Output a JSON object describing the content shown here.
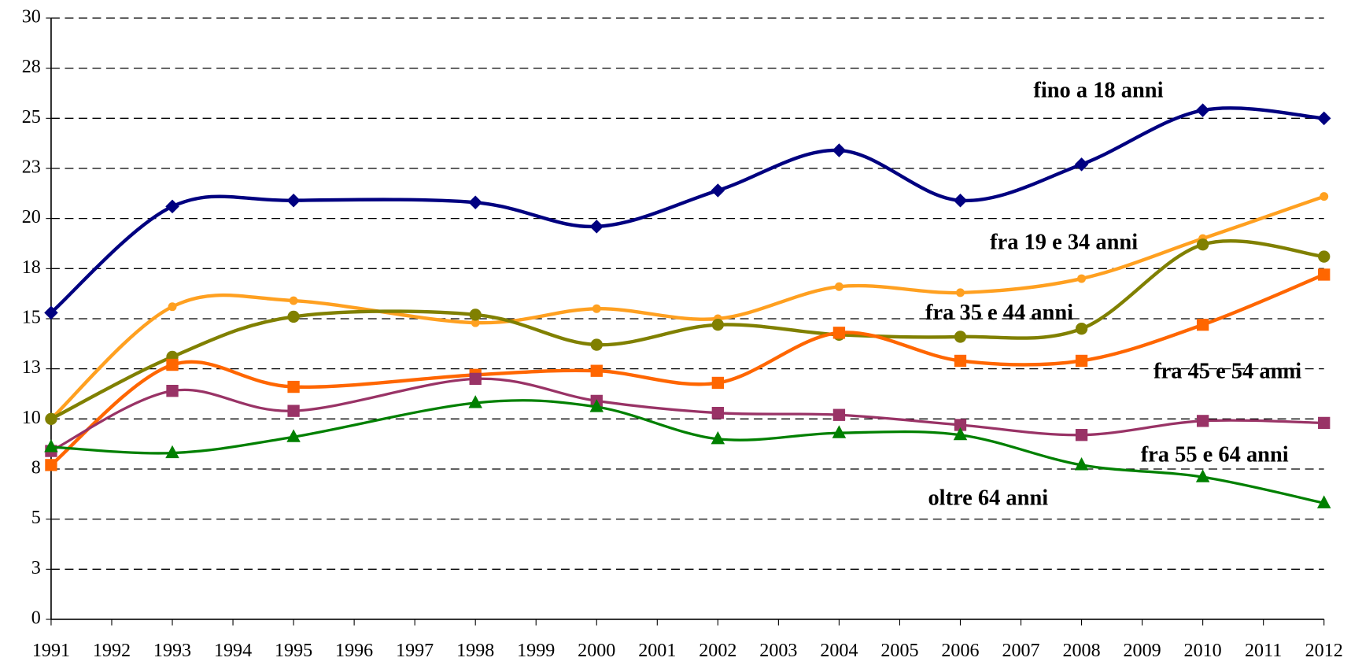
{
  "chart_data": {
    "type": "line",
    "x": [
      1991,
      1993,
      1995,
      1998,
      2000,
      2002,
      2004,
      2006,
      2008,
      2010,
      2012
    ],
    "xlim": [
      1991,
      2012
    ],
    "xticks": [
      1991,
      1992,
      1993,
      1994,
      1995,
      1996,
      1997,
      1998,
      1999,
      2000,
      2001,
      2002,
      2003,
      2004,
      2005,
      2006,
      2007,
      2008,
      2009,
      2010,
      2011,
      2012
    ],
    "ylim": [
      0,
      30
    ],
    "yticks": [
      0,
      {
        "value": 2.5,
        "label": "3"
      },
      5,
      {
        "value": 7.5,
        "label": "8"
      },
      10,
      {
        "value": 12.5,
        "label": "13"
      },
      15,
      {
        "value": 17.5,
        "label": "18"
      },
      20,
      {
        "value": 22.5,
        "label": "23"
      },
      25,
      {
        "value": 27.5,
        "label": "28"
      },
      30
    ],
    "grid": true,
    "series": [
      {
        "name": "fino a 18 anni",
        "color": "#000080",
        "marker": "diamond",
        "values": [
          15.3,
          20.6,
          20.9,
          20.8,
          19.6,
          21.4,
          23.4,
          20.9,
          22.7,
          25.4,
          25.0
        ]
      },
      {
        "name": "fra 19 e 34 anni",
        "color": "#ffa020",
        "marker": "circle",
        "values": [
          10.0,
          15.6,
          15.9,
          14.8,
          15.5,
          15.0,
          16.6,
          16.3,
          17.0,
          19.0,
          21.1
        ]
      },
      {
        "name": "fra 35 e 44 anni",
        "color": "#808000",
        "marker": "circle",
        "values": [
          10.0,
          13.1,
          15.1,
          15.2,
          13.7,
          14.7,
          14.2,
          14.1,
          14.5,
          18.7,
          18.1
        ]
      },
      {
        "name": "fra 45 e 54 anni",
        "color": "#ff6600",
        "marker": "square",
        "values": [
          7.7,
          12.7,
          11.6,
          12.2,
          12.4,
          11.8,
          14.3,
          12.9,
          12.9,
          14.7,
          17.2
        ]
      },
      {
        "name": "fra 55 e 64 anni",
        "color": "#993366",
        "marker": "square",
        "values": [
          8.4,
          11.4,
          10.4,
          12.0,
          10.9,
          10.3,
          10.2,
          9.7,
          9.2,
          9.9,
          9.8
        ]
      },
      {
        "name": "oltre 64 anni",
        "color": "#008000",
        "marker": "triangle",
        "values": [
          8.6,
          8.3,
          9.1,
          10.8,
          10.6,
          9.0,
          9.3,
          9.2,
          7.7,
          7.1,
          5.8
        ]
      }
    ]
  }
}
